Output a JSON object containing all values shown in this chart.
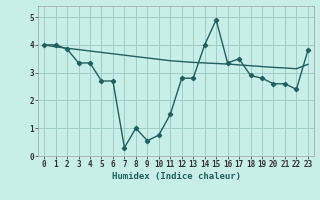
{
  "x": [
    0,
    1,
    2,
    3,
    4,
    5,
    6,
    7,
    8,
    9,
    10,
    11,
    12,
    13,
    14,
    15,
    16,
    17,
    18,
    19,
    20,
    21,
    22,
    23
  ],
  "y_jagged": [
    4.0,
    4.0,
    3.85,
    3.35,
    3.35,
    2.7,
    2.7,
    0.3,
    1.0,
    0.55,
    0.75,
    1.5,
    2.8,
    2.8,
    4.0,
    4.9,
    3.35,
    3.5,
    2.9,
    2.8,
    2.6,
    2.6,
    2.4,
    3.8
  ],
  "y_trend": [
    4.0,
    3.93,
    3.88,
    3.83,
    3.78,
    3.73,
    3.68,
    3.63,
    3.58,
    3.53,
    3.48,
    3.43,
    3.4,
    3.37,
    3.35,
    3.33,
    3.31,
    3.28,
    3.25,
    3.22,
    3.19,
    3.17,
    3.14,
    3.3
  ],
  "line_color": "#206060",
  "bg_color": "#c8eee8",
  "grid_color": "#a0ccc8",
  "xlabel": "Humidex (Indice chaleur)",
  "xlim": [
    -0.5,
    23.5
  ],
  "ylim": [
    0,
    5.4
  ],
  "yticks": [
    0,
    1,
    2,
    3,
    4,
    5
  ],
  "xticks": [
    0,
    1,
    2,
    3,
    4,
    5,
    6,
    7,
    8,
    9,
    10,
    11,
    12,
    13,
    14,
    15,
    16,
    17,
    18,
    19,
    20,
    21,
    22,
    23
  ],
  "marker": "D",
  "markersize": 2.2,
  "linewidth": 1.0,
  "tick_fontsize": 5.5,
  "label_fontsize": 6.5
}
